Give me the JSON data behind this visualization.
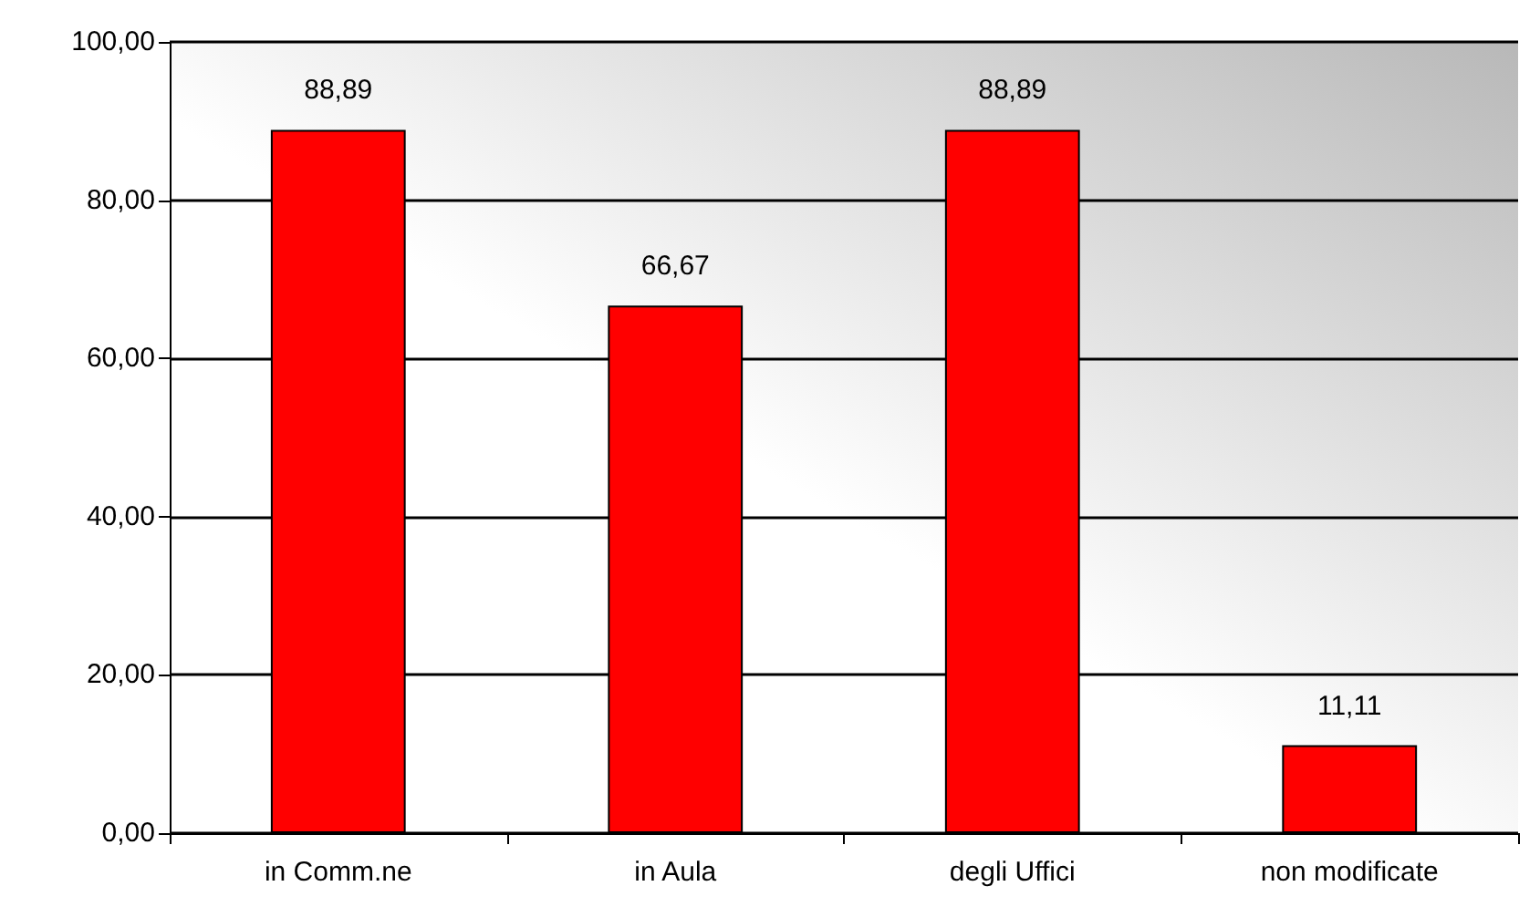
{
  "chart_data": {
    "type": "bar",
    "categories": [
      "in Comm.ne",
      "in Aula",
      "degli Uffici",
      "non modificate"
    ],
    "values": [
      88.89,
      66.67,
      88.89,
      11.11
    ],
    "value_labels": [
      "88,89",
      "66,67",
      "88,89",
      "11,11"
    ],
    "color": "#ff0000",
    "ylim": [
      0,
      100
    ],
    "yticks": [
      {
        "value": 0,
        "label": "0,00"
      },
      {
        "value": 20,
        "label": "20,00"
      },
      {
        "value": 40,
        "label": "40,00"
      },
      {
        "value": 60,
        "label": "60,00"
      },
      {
        "value": 80,
        "label": "80,00"
      },
      {
        "value": 100,
        "label": "100,00"
      }
    ],
    "grid": "y"
  }
}
